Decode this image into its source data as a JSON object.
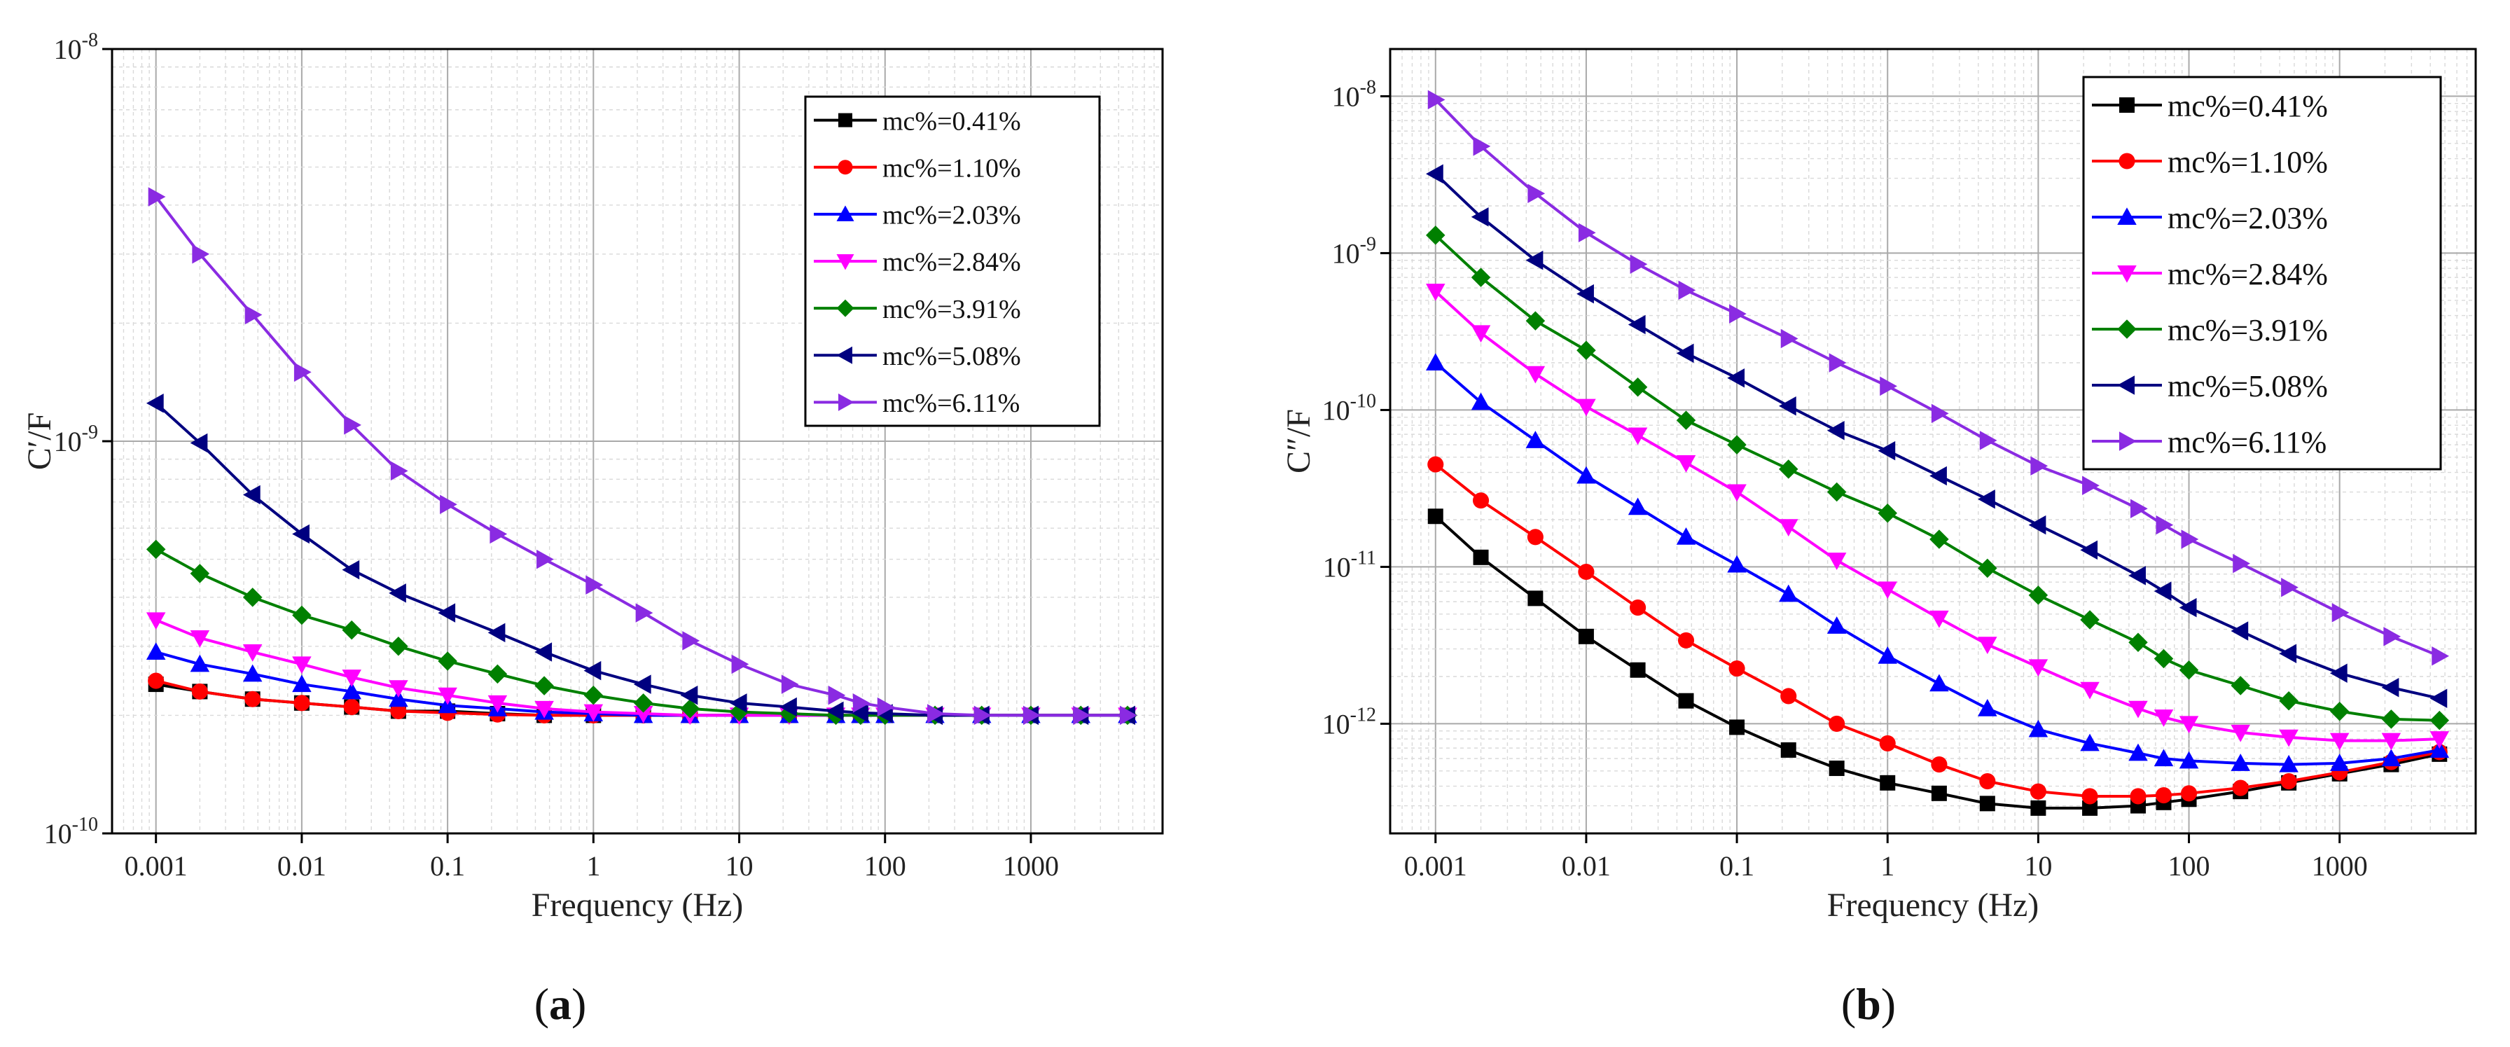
{
  "chart_data": [
    {
      "type": "line",
      "panel_label": "(a)",
      "title": "",
      "xlabel": "Frequency (Hz)",
      "ylabel": "C′/F",
      "xscale": "log",
      "yscale": "log",
      "xlim": [
        0.0005,
        8000
      ],
      "ylim": [
        1e-10,
        1e-08
      ],
      "grid": true,
      "legend_position": "top-right",
      "x_ticks": [
        {
          "value": 0.001,
          "label": "0.001"
        },
        {
          "value": 0.01,
          "label": "0.01"
        },
        {
          "value": 0.1,
          "label": "0.1"
        },
        {
          "value": 1,
          "label": "1"
        },
        {
          "value": 10,
          "label": "10"
        },
        {
          "value": 100,
          "label": "100"
        },
        {
          "value": 1000,
          "label": "1000"
        }
      ],
      "y_ticks": [
        {
          "value": 1e-10,
          "mantissa": "10",
          "exp": "-10"
        },
        {
          "value": 1e-09,
          "mantissa": "10",
          "exp": "-9"
        },
        {
          "value": 1e-08,
          "mantissa": "10",
          "exp": "-8"
        }
      ],
      "x": [
        0.001,
        0.002,
        0.0046,
        0.01,
        0.022,
        0.046,
        0.1,
        0.22,
        0.46,
        1,
        2.2,
        4.6,
        10,
        22,
        46,
        68,
        100,
        220,
        460,
        1000,
        2200,
        4600
      ],
      "series": [
        {
          "name": "mc%=0.41%",
          "color": "#000000",
          "marker": "square",
          "values": [
            2.4e-10,
            2.3e-10,
            2.2e-10,
            2.15e-10,
            2.1e-10,
            2.05e-10,
            2.05e-10,
            2.02e-10,
            2e-10,
            2e-10,
            2e-10,
            2e-10,
            2e-10,
            2e-10,
            2e-10,
            2e-10,
            2e-10,
            2e-10,
            2e-10,
            2e-10,
            2e-10,
            2e-10
          ]
        },
        {
          "name": "mc%=1.10%",
          "color": "#ff0000",
          "marker": "circle",
          "values": [
            2.45e-10,
            2.3e-10,
            2.2e-10,
            2.15e-10,
            2.1e-10,
            2.05e-10,
            2.03e-10,
            2.01e-10,
            2e-10,
            2e-10,
            2e-10,
            2e-10,
            2e-10,
            2e-10,
            2e-10,
            2e-10,
            2e-10,
            2e-10,
            2e-10,
            2e-10,
            2e-10,
            2e-10
          ]
        },
        {
          "name": "mc%=2.03%",
          "color": "#0000ff",
          "marker": "triangle-up",
          "values": [
            2.9e-10,
            2.7e-10,
            2.55e-10,
            2.4e-10,
            2.3e-10,
            2.2e-10,
            2.12e-10,
            2.08e-10,
            2.04e-10,
            2.02e-10,
            2e-10,
            2e-10,
            2e-10,
            2e-10,
            2e-10,
            2e-10,
            2e-10,
            2e-10,
            2e-10,
            2e-10,
            2e-10,
            2e-10
          ]
        },
        {
          "name": "mc%=2.84%",
          "color": "#ff00ff",
          "marker": "triangle-down",
          "values": [
            3.5e-10,
            3.15e-10,
            2.9e-10,
            2.7e-10,
            2.5e-10,
            2.35e-10,
            2.25e-10,
            2.15e-10,
            2.08e-10,
            2.04e-10,
            2.02e-10,
            2e-10,
            2e-10,
            2e-10,
            2e-10,
            2e-10,
            2e-10,
            2e-10,
            2e-10,
            2e-10,
            2e-10,
            2e-10
          ]
        },
        {
          "name": "mc%=3.91%",
          "color": "#008000",
          "marker": "diamond",
          "values": [
            5.3e-10,
            4.6e-10,
            4e-10,
            3.6e-10,
            3.3e-10,
            3e-10,
            2.75e-10,
            2.55e-10,
            2.38e-10,
            2.25e-10,
            2.15e-10,
            2.08e-10,
            2.04e-10,
            2.02e-10,
            2e-10,
            2e-10,
            2e-10,
            2e-10,
            2e-10,
            2e-10,
            2e-10,
            2e-10
          ]
        },
        {
          "name": "mc%=5.08%",
          "color": "#000080",
          "marker": "triangle-left",
          "values": [
            1.25e-09,
            9.9e-10,
            7.3e-10,
            5.8e-10,
            4.7e-10,
            4.1e-10,
            3.65e-10,
            3.25e-10,
            2.9e-10,
            2.6e-10,
            2.4e-10,
            2.25e-10,
            2.15e-10,
            2.1e-10,
            2.05e-10,
            2.03e-10,
            2.02e-10,
            2e-10,
            2e-10,
            2e-10,
            2e-10,
            2e-10
          ]
        },
        {
          "name": "mc%=6.11%",
          "color": "#8a2be2",
          "marker": "triangle-right",
          "values": [
            4.2e-09,
            3e-09,
            2.1e-09,
            1.5e-09,
            1.1e-09,
            8.4e-10,
            6.9e-10,
            5.8e-10,
            5e-10,
            4.3e-10,
            3.65e-10,
            3.1e-10,
            2.7e-10,
            2.4e-10,
            2.25e-10,
            2.15e-10,
            2.1e-10,
            2.02e-10,
            2e-10,
            2e-10,
            2e-10,
            2e-10
          ]
        }
      ]
    },
    {
      "type": "line",
      "panel_label": "(b)",
      "title": "",
      "xlabel": "Frequency (Hz)",
      "ylabel": "C″/F",
      "xscale": "log",
      "yscale": "log",
      "xlim": [
        0.0005,
        8000
      ],
      "ylim": [
        2e-13,
        2e-08
      ],
      "grid": true,
      "legend_position": "top-right",
      "x_ticks": [
        {
          "value": 0.001,
          "label": "0.001"
        },
        {
          "value": 0.01,
          "label": "0.01"
        },
        {
          "value": 0.1,
          "label": "0.1"
        },
        {
          "value": 1,
          "label": "1"
        },
        {
          "value": 10,
          "label": "10"
        },
        {
          "value": 100,
          "label": "100"
        },
        {
          "value": 1000,
          "label": "1000"
        }
      ],
      "y_ticks": [
        {
          "value": 1e-12,
          "mantissa": "10",
          "exp": "-12"
        },
        {
          "value": 1e-11,
          "mantissa": "10",
          "exp": "-11"
        },
        {
          "value": 1e-10,
          "mantissa": "10",
          "exp": "-10"
        },
        {
          "value": 1e-09,
          "mantissa": "10",
          "exp": "-9"
        },
        {
          "value": 1e-08,
          "mantissa": "10",
          "exp": "-8"
        }
      ],
      "x": [
        0.001,
        0.002,
        0.0046,
        0.01,
        0.022,
        0.046,
        0.1,
        0.22,
        0.46,
        1,
        2.2,
        4.6,
        10,
        22,
        46,
        68,
        100,
        220,
        460,
        1000,
        2200,
        4600
      ],
      "series": [
        {
          "name": "mc%=0.41%",
          "color": "#000000",
          "marker": "square",
          "values": [
            2.1e-11,
            1.15e-11,
            6.3e-12,
            3.6e-12,
            2.2e-12,
            1.4e-12,
            9.5e-13,
            6.8e-13,
            5.2e-13,
            4.2e-13,
            3.6e-13,
            3.1e-13,
            2.9e-13,
            2.9e-13,
            3e-13,
            3.15e-13,
            3.3e-13,
            3.7e-13,
            4.2e-13,
            4.8e-13,
            5.5e-13,
            6.4e-13
          ]
        },
        {
          "name": "mc%=1.10%",
          "color": "#ff0000",
          "marker": "circle",
          "values": [
            4.5e-11,
            2.65e-11,
            1.55e-11,
            9.3e-12,
            5.5e-12,
            3.4e-12,
            2.25e-12,
            1.5e-12,
            1e-12,
            7.5e-13,
            5.5e-13,
            4.3e-13,
            3.7e-13,
            3.45e-13,
            3.45e-13,
            3.5e-13,
            3.6e-13,
            3.9e-13,
            4.3e-13,
            4.9e-13,
            5.7e-13,
            6.6e-13
          ]
        },
        {
          "name": "mc%=2.03%",
          "color": "#0000ff",
          "marker": "triangle-up",
          "values": [
            2e-10,
            1.12e-10,
            6.4e-11,
            3.8e-11,
            2.4e-11,
            1.55e-11,
            1.03e-11,
            6.7e-12,
            4.2e-12,
            2.7e-12,
            1.8e-12,
            1.25e-12,
            9.2e-13,
            7.5e-13,
            6.5e-13,
            6e-13,
            5.8e-13,
            5.6e-13,
            5.5e-13,
            5.6e-13,
            6e-13,
            6.8e-13
          ]
        },
        {
          "name": "mc%=2.84%",
          "color": "#ff00ff",
          "marker": "triangle-down",
          "values": [
            5.7e-10,
            3.1e-10,
            1.7e-10,
            1.05e-10,
            6.9e-11,
            4.6e-11,
            3e-11,
            1.8e-11,
            1.1e-11,
            7.2e-12,
            4.7e-12,
            3.2e-12,
            2.3e-12,
            1.65e-12,
            1.25e-12,
            1.1e-12,
            1e-12,
            8.8e-13,
            8.2e-13,
            7.8e-13,
            7.8e-13,
            8e-13
          ]
        },
        {
          "name": "mc%=3.91%",
          "color": "#008000",
          "marker": "diamond",
          "values": [
            1.3e-09,
            7e-10,
            3.7e-10,
            2.4e-10,
            1.4e-10,
            8.6e-11,
            6e-11,
            4.2e-11,
            3e-11,
            2.2e-11,
            1.5e-11,
            9.8e-12,
            6.6e-12,
            4.6e-12,
            3.3e-12,
            2.6e-12,
            2.2e-12,
            1.75e-12,
            1.4e-12,
            1.2e-12,
            1.07e-12,
            1.05e-12
          ]
        },
        {
          "name": "mc%=5.08%",
          "color": "#000080",
          "marker": "triangle-left",
          "values": [
            3.2e-09,
            1.7e-09,
            9e-10,
            5.5e-10,
            3.5e-10,
            2.3e-10,
            1.6e-10,
            1.06e-10,
            7.4e-11,
            5.5e-11,
            3.8e-11,
            2.7e-11,
            1.85e-11,
            1.28e-11,
            8.8e-12,
            7e-12,
            5.5e-12,
            3.9e-12,
            2.8e-12,
            2.1e-12,
            1.7e-12,
            1.45e-12
          ]
        },
        {
          "name": "mc%=6.11%",
          "color": "#8a2be2",
          "marker": "triangle-right",
          "values": [
            9.5e-09,
            4.8e-09,
            2.4e-09,
            1.35e-09,
            8.5e-10,
            5.8e-10,
            4.1e-10,
            2.85e-10,
            2e-10,
            1.42e-10,
            9.5e-11,
            6.4e-11,
            4.4e-11,
            3.3e-11,
            2.35e-11,
            1.85e-11,
            1.5e-11,
            1.05e-11,
            7.4e-12,
            5.1e-12,
            3.6e-12,
            2.7e-12
          ]
        }
      ]
    }
  ],
  "captions": {
    "a": {
      "open": "(",
      "letter": "a",
      "close": ")"
    },
    "b": {
      "open": "(",
      "letter": "b",
      "close": ")"
    }
  }
}
